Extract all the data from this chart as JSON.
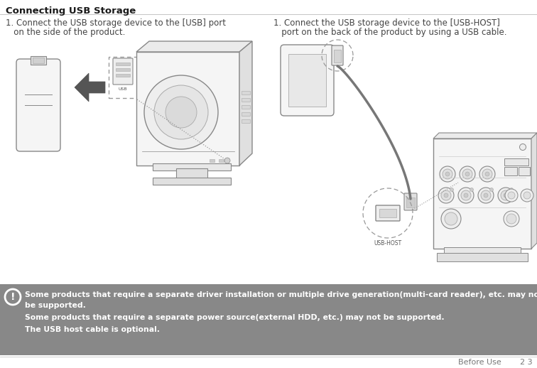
{
  "title": "Connecting USB Storage",
  "left_step_line1": "1. Connect the USB storage device to the [USB] port",
  "left_step_line2": "   on the side of the product.",
  "right_step_line1": "1. Connect the USB storage device to the [USB-HOST]",
  "right_step_line2": "   port on the back of the product by using a USB cable.",
  "warning_line1": "Some products that require a separate driver installation or multiple drive generation(multi-card reader), etc. may not",
  "warning_line2": "be supported.",
  "warning_line3": "Some products that require a separate power source(external HDD, etc.) may not be supported.",
  "warning_line4": "The USB host cable is optional.",
  "footer_text": "Before Use",
  "page_numbers": "2 3",
  "bg_color": "#ffffff",
  "warning_bg": "#888888",
  "warning_text_color": "#ffffff",
  "title_color": "#1a1a1a",
  "body_color": "#444444",
  "footer_color": "#777777",
  "line_color": "#777777",
  "dashed_color": "#999999",
  "divider_color": "#bbbbbb",
  "shape_fill": "#f5f5f5",
  "shape_edge": "#888888"
}
